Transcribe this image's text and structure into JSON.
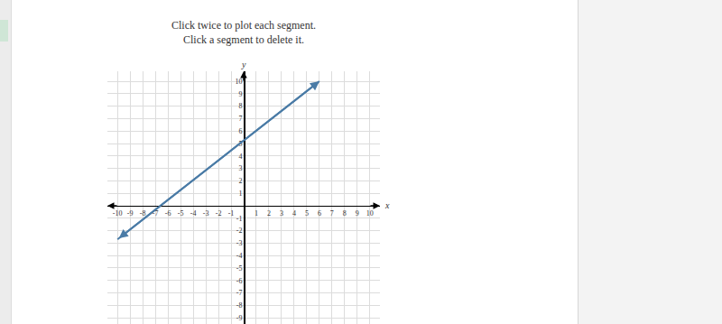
{
  "chart_data": {
    "type": "line",
    "title": "Click twice to plot each segment.",
    "subtitle": "Click a segment to delete it.",
    "x_label": "x",
    "y_label": "y",
    "x": [
      -10,
      6
    ],
    "values": [
      -2.7,
      10
    ],
    "color": "#4a7ba6",
    "line_style": "solid",
    "marker": "arrow",
    "xlim": [
      -10.8,
      10.8
    ],
    "ylim": [
      -9.5,
      10.8
    ],
    "xticks": [
      -10,
      -9,
      -8,
      -7,
      -6,
      -5,
      -4,
      -3,
      -2,
      -1,
      1,
      2,
      3,
      4,
      5,
      6,
      7,
      8,
      9,
      10
    ],
    "yticks": [
      -9,
      -8,
      -7,
      -6,
      -5,
      -4,
      -3,
      -2,
      -1,
      1,
      2,
      3,
      4,
      5,
      6,
      7,
      8,
      9,
      10
    ],
    "grid": true
  }
}
